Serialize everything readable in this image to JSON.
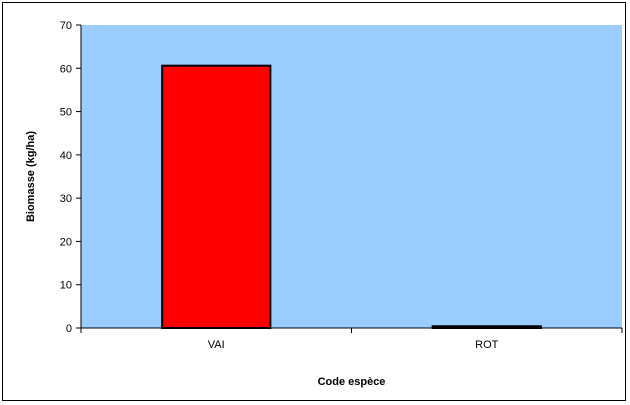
{
  "chart_data": {
    "type": "bar",
    "categories": [
      "VAI",
      "ROT"
    ],
    "values": [
      60.6,
      0.4
    ],
    "xlabel": "Code espèce",
    "ylabel": "Biomasse  (kg/ha)",
    "ylim": [
      0,
      70
    ],
    "yticks": [
      0,
      10,
      20,
      30,
      40,
      50,
      60,
      70
    ],
    "grid": false,
    "legend": "none",
    "colors": {
      "plot_background": "#99ccff",
      "bar_fill": "#ff0000",
      "bar_stroke": "#000000"
    }
  }
}
